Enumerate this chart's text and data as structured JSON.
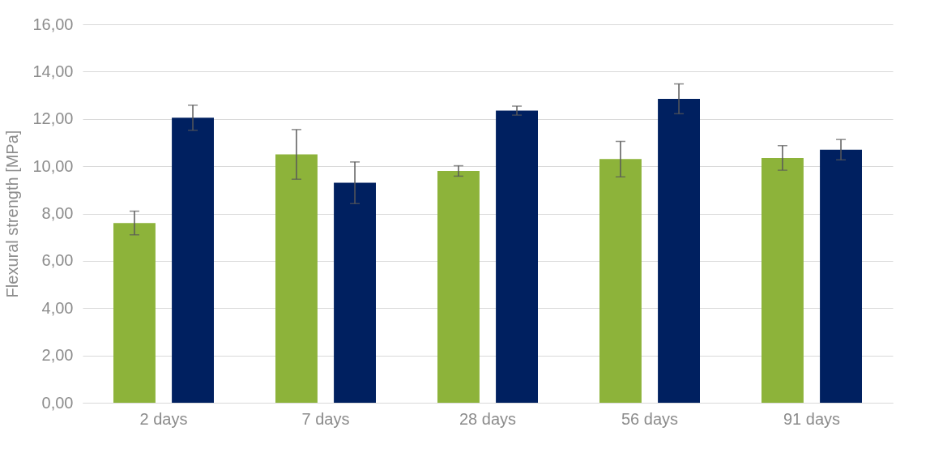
{
  "chart_data": {
    "type": "bar",
    "ylabel": "Flexural strength [MPa]",
    "categories": [
      "2 days",
      "7 days",
      "28 days",
      "56 days",
      "91 days"
    ],
    "series": [
      {
        "color": "#8db33a",
        "values": [
          7.6,
          10.5,
          9.8,
          10.3,
          10.35
        ],
        "errors": [
          0.5,
          1.05,
          0.22,
          0.75,
          0.52
        ]
      },
      {
        "color": "#002060",
        "values": [
          12.05,
          9.3,
          12.35,
          12.85,
          10.7
        ],
        "errors": [
          0.53,
          0.88,
          0.19,
          0.63,
          0.43
        ]
      }
    ],
    "ylim": [
      0,
      16
    ],
    "yticks": [
      {
        "value": 0,
        "label": "0,00"
      },
      {
        "value": 2,
        "label": "2,00"
      },
      {
        "value": 4,
        "label": "4,00"
      },
      {
        "value": 6,
        "label": "6,00"
      },
      {
        "value": 8,
        "label": "8,00"
      },
      {
        "value": 10,
        "label": "10,00"
      },
      {
        "value": 12,
        "label": "12,00"
      },
      {
        "value": 14,
        "label": "14,00"
      },
      {
        "value": 16,
        "label": "16,00"
      }
    ],
    "grid": "y",
    "legend": false
  }
}
